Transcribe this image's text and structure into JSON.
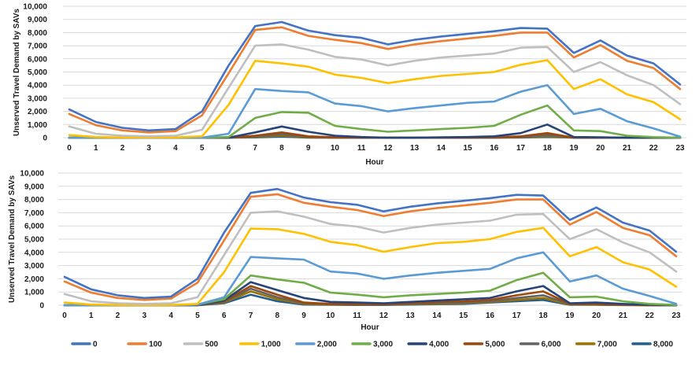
{
  "chart_data": [
    {
      "type": "line",
      "title": "",
      "xlabel": "Hour",
      "ylabel": "Unserved Travel Demand by SAVs",
      "ylim": [
        0,
        10000
      ],
      "yticks": [
        "0",
        "1,000",
        "2,000",
        "3,000",
        "4,000",
        "5,000",
        "6,000",
        "7,000",
        "8,000",
        "9,000",
        "10,000"
      ],
      "categories": [
        "0",
        "1",
        "2",
        "3",
        "4",
        "5",
        "6",
        "7",
        "8",
        "9",
        "10",
        "11",
        "12",
        "13",
        "14",
        "15",
        "16",
        "17",
        "18",
        "19",
        "20",
        "21",
        "22",
        "23"
      ],
      "series": [
        {
          "name": "0",
          "color": "#4472C4",
          "values": [
            2150,
            1200,
            750,
            550,
            650,
            2000,
            5500,
            8500,
            8800,
            8150,
            7800,
            7600,
            7100,
            7450,
            7700,
            7900,
            8100,
            8350,
            8300,
            6450,
            7400,
            6250,
            5650,
            4050
          ]
        },
        {
          "name": "100",
          "color": "#ED7D31",
          "values": [
            1800,
            950,
            550,
            400,
            500,
            1700,
            4900,
            8200,
            8400,
            7750,
            7450,
            7200,
            6750,
            7100,
            7350,
            7550,
            7750,
            8000,
            8000,
            6100,
            7050,
            5850,
            5300,
            3700
          ]
        },
        {
          "name": "500",
          "color": "#BFBFBF",
          "values": [
            850,
            300,
            150,
            100,
            150,
            600,
            3800,
            7000,
            7100,
            6700,
            6150,
            5950,
            5500,
            5850,
            6100,
            6250,
            6400,
            6850,
            6900,
            5000,
            5750,
            4750,
            4000,
            2550
          ]
        },
        {
          "name": "1,000",
          "color": "#FFC000",
          "values": [
            200,
            50,
            20,
            10,
            20,
            100,
            2500,
            5850,
            5650,
            5400,
            4800,
            4550,
            4150,
            4450,
            4700,
            4850,
            5000,
            5550,
            5900,
            3700,
            4450,
            3300,
            2700,
            1400
          ]
        },
        {
          "name": "2,000",
          "color": "#5B9BD5",
          "values": [
            0,
            0,
            0,
            0,
            0,
            0,
            300,
            3700,
            3550,
            3450,
            2600,
            2400,
            2000,
            2250,
            2450,
            2650,
            2750,
            3500,
            4000,
            1800,
            2200,
            1250,
            700,
            80
          ]
        },
        {
          "name": "3,000",
          "color": "#70AD47",
          "values": [
            0,
            0,
            0,
            0,
            0,
            0,
            50,
            1500,
            1950,
            1900,
            900,
            650,
            450,
            550,
            650,
            750,
            900,
            1750,
            2450,
            550,
            500,
            150,
            40,
            0
          ]
        },
        {
          "name": "4,000",
          "color": "#264478",
          "values": [
            0,
            0,
            0,
            0,
            0,
            0,
            0,
            400,
            850,
            450,
            150,
            50,
            0,
            0,
            30,
            50,
            100,
            350,
            1000,
            50,
            30,
            0,
            0,
            0
          ]
        },
        {
          "name": "5,000",
          "color": "#9E480E",
          "values": [
            0,
            0,
            0,
            0,
            0,
            0,
            0,
            150,
            400,
            100,
            30,
            0,
            0,
            0,
            0,
            0,
            30,
            100,
            350,
            0,
            0,
            0,
            0,
            0
          ]
        },
        {
          "name": "6,000",
          "color": "#636363",
          "values": [
            0,
            0,
            0,
            0,
            0,
            0,
            0,
            80,
            250,
            50,
            0,
            0,
            0,
            0,
            0,
            0,
            0,
            50,
            200,
            0,
            0,
            0,
            0,
            0
          ]
        },
        {
          "name": "7,000",
          "color": "#997300",
          "values": [
            0,
            0,
            0,
            0,
            0,
            0,
            0,
            40,
            150,
            20,
            0,
            0,
            0,
            0,
            0,
            0,
            0,
            30,
            100,
            0,
            0,
            0,
            0,
            0
          ]
        },
        {
          "name": "8,000",
          "color": "#255E91",
          "values": [
            0,
            0,
            0,
            0,
            0,
            0,
            0,
            20,
            80,
            0,
            0,
            0,
            0,
            0,
            0,
            0,
            0,
            10,
            50,
            0,
            0,
            0,
            0,
            0
          ]
        }
      ]
    },
    {
      "type": "line",
      "title": "",
      "xlabel": "Hour",
      "ylabel": "Unserved Travel Demand by SAVs",
      "ylim": [
        0,
        10000
      ],
      "yticks": [
        "0",
        "1,000",
        "2,000",
        "3,000",
        "4,000",
        "5,000",
        "6,000",
        "7,000",
        "8,000",
        "9,000",
        "10,000"
      ],
      "categories": [
        "0",
        "1",
        "2",
        "3",
        "4",
        "5",
        "6",
        "7",
        "8",
        "9",
        "10",
        "11",
        "12",
        "13",
        "14",
        "15",
        "16",
        "17",
        "18",
        "19",
        "20",
        "21",
        "22",
        "23"
      ],
      "series": [
        {
          "name": "0",
          "color": "#4472C4",
          "values": [
            2150,
            1200,
            750,
            550,
            650,
            2000,
            5500,
            8500,
            8800,
            8150,
            7800,
            7600,
            7100,
            7450,
            7700,
            7900,
            8100,
            8350,
            8300,
            6450,
            7400,
            6250,
            5650,
            4050
          ]
        },
        {
          "name": "100",
          "color": "#ED7D31",
          "values": [
            1800,
            950,
            550,
            400,
            500,
            1700,
            4900,
            8200,
            8400,
            7750,
            7450,
            7200,
            6750,
            7100,
            7350,
            7550,
            7750,
            8000,
            8000,
            6100,
            7050,
            5850,
            5300,
            3700
          ]
        },
        {
          "name": "500",
          "color": "#BFBFBF",
          "values": [
            850,
            300,
            150,
            100,
            150,
            600,
            3800,
            7000,
            7100,
            6700,
            6150,
            5950,
            5500,
            5850,
            6100,
            6250,
            6400,
            6850,
            6900,
            5000,
            5750,
            4750,
            4000,
            2550
          ]
        },
        {
          "name": "1,000",
          "color": "#FFC000",
          "values": [
            200,
            50,
            20,
            10,
            20,
            100,
            2500,
            5800,
            5750,
            5400,
            4800,
            4550,
            4050,
            4400,
            4700,
            4800,
            5000,
            5550,
            5850,
            3700,
            4400,
            3250,
            2700,
            1400
          ]
        },
        {
          "name": "2,000",
          "color": "#5B9BD5",
          "values": [
            0,
            0,
            0,
            0,
            0,
            50,
            600,
            3650,
            3550,
            3450,
            2550,
            2400,
            2000,
            2250,
            2450,
            2600,
            2750,
            3550,
            4000,
            1800,
            2250,
            1250,
            700,
            100
          ]
        },
        {
          "name": "3,000",
          "color": "#70AD47",
          "values": [
            0,
            0,
            0,
            0,
            0,
            50,
            450,
            2250,
            1950,
            1700,
            950,
            800,
            600,
            750,
            850,
            950,
            1100,
            1900,
            2450,
            600,
            650,
            300,
            100,
            20
          ]
        },
        {
          "name": "4,000",
          "color": "#264478",
          "values": [
            0,
            0,
            0,
            0,
            0,
            20,
            350,
            1750,
            1150,
            550,
            250,
            200,
            150,
            250,
            350,
            450,
            550,
            1050,
            1450,
            150,
            200,
            100,
            30,
            0
          ]
        },
        {
          "name": "5,000",
          "color": "#9E480E",
          "values": [
            0,
            0,
            0,
            0,
            0,
            10,
            300,
            1450,
            800,
            200,
            100,
            100,
            80,
            150,
            250,
            300,
            400,
            750,
            1050,
            100,
            100,
            50,
            0,
            0
          ]
        },
        {
          "name": "6,000",
          "color": "#636363",
          "values": [
            0,
            0,
            0,
            0,
            0,
            0,
            250,
            1250,
            600,
            150,
            80,
            50,
            50,
            100,
            150,
            200,
            300,
            550,
            750,
            80,
            80,
            30,
            0,
            0
          ]
        },
        {
          "name": "7,000",
          "color": "#997300",
          "values": [
            0,
            0,
            0,
            0,
            0,
            0,
            200,
            1050,
            450,
            100,
            50,
            30,
            30,
            80,
            100,
            150,
            250,
            400,
            550,
            50,
            50,
            20,
            0,
            0
          ]
        },
        {
          "name": "8,000",
          "color": "#255E91",
          "values": [
            0,
            0,
            0,
            0,
            0,
            0,
            150,
            800,
            300,
            50,
            30,
            20,
            20,
            50,
            80,
            100,
            200,
            300,
            400,
            30,
            30,
            10,
            0,
            0
          ]
        }
      ]
    }
  ],
  "legend": {
    "position": "bottom",
    "items": [
      {
        "name": "0",
        "color": "#4472C4"
      },
      {
        "name": "100",
        "color": "#ED7D31"
      },
      {
        "name": "500",
        "color": "#BFBFBF"
      },
      {
        "name": "1,000",
        "color": "#FFC000"
      },
      {
        "name": "2,000",
        "color": "#5B9BD5"
      },
      {
        "name": "3,000",
        "color": "#70AD47"
      },
      {
        "name": "4,000",
        "color": "#264478"
      },
      {
        "name": "5,000",
        "color": "#9E480E"
      },
      {
        "name": "6,000",
        "color": "#636363"
      },
      {
        "name": "7,000",
        "color": "#997300"
      },
      {
        "name": "8,000",
        "color": "#255E91"
      }
    ]
  }
}
